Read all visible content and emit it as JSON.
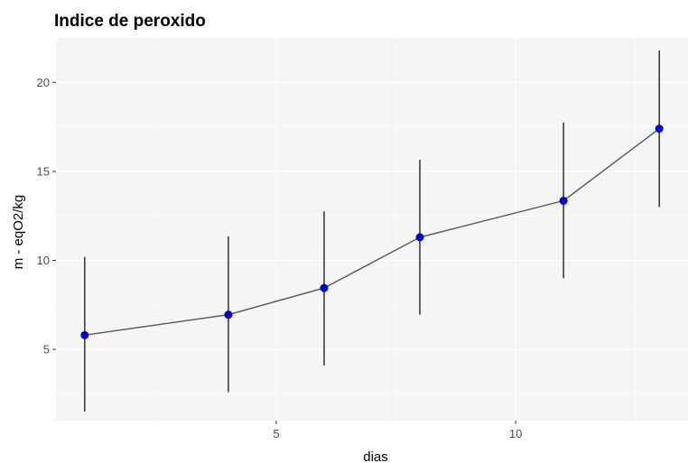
{
  "chart_data": {
    "type": "line",
    "title": "Indice de peroxido",
    "xlabel": "dias",
    "ylabel": "m - eqO2/kg",
    "xlim": [
      0.4,
      13.6
    ],
    "ylim": [
      1.0,
      22.5
    ],
    "x_ticks": [
      5,
      10
    ],
    "x_minor_ticks": [
      2.5,
      7.5,
      12.5
    ],
    "y_ticks": [
      5,
      10,
      15,
      20
    ],
    "y_minor_ticks": [
      2.5,
      7.5,
      12.5,
      17.5
    ],
    "grid": true,
    "legend": "none",
    "colors": {
      "panel": "#f5f5f5",
      "grid": "#ffffff",
      "line": "#555555",
      "errorbar": "#222222",
      "point": "#0000cc"
    },
    "series": [
      {
        "x": [
          1,
          4,
          6,
          8,
          11,
          13
        ],
        "y": [
          5.8,
          6.95,
          8.45,
          11.3,
          13.35,
          17.4
        ],
        "ymin": [
          1.5,
          2.6,
          4.1,
          6.95,
          9.0,
          13.0
        ],
        "ymax": [
          10.2,
          11.35,
          12.75,
          15.65,
          17.75,
          21.8
        ]
      }
    ]
  }
}
